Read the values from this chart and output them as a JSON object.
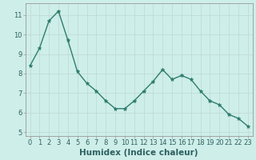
{
  "x": [
    0,
    1,
    2,
    3,
    4,
    5,
    6,
    7,
    8,
    9,
    10,
    11,
    12,
    13,
    14,
    15,
    16,
    17,
    18,
    19,
    20,
    21,
    22,
    23
  ],
  "y": [
    8.4,
    9.3,
    10.7,
    11.2,
    9.7,
    8.1,
    7.5,
    7.1,
    6.6,
    6.2,
    6.2,
    6.6,
    7.1,
    7.6,
    8.2,
    7.7,
    7.9,
    7.7,
    7.1,
    6.6,
    6.4,
    5.9,
    5.7,
    5.3
  ],
  "line_color": "#2e7d6e",
  "marker": "*",
  "marker_size": 3.5,
  "bg_color": "#ceeee9",
  "grid_color": "#c0dcd8",
  "xlabel": "Humidex (Indice chaleur)",
  "xlim": [
    -0.5,
    23.5
  ],
  "ylim": [
    4.8,
    11.6
  ],
  "yticks": [
    5,
    6,
    7,
    8,
    9,
    10,
    11
  ],
  "xticks": [
    0,
    1,
    2,
    3,
    4,
    5,
    6,
    7,
    8,
    9,
    10,
    11,
    12,
    13,
    14,
    15,
    16,
    17,
    18,
    19,
    20,
    21,
    22,
    23
  ],
  "xtick_labels": [
    "0",
    "1",
    "2",
    "3",
    "4",
    "5",
    "6",
    "7",
    "8",
    "9",
    "10",
    "11",
    "12",
    "13",
    "14",
    "15",
    "16",
    "17",
    "18",
    "19",
    "20",
    "21",
    "22",
    "23"
  ],
  "tick_fontsize": 6,
  "xlabel_fontsize": 7.5,
  "spine_color": "#999999",
  "text_color": "#2e6060"
}
